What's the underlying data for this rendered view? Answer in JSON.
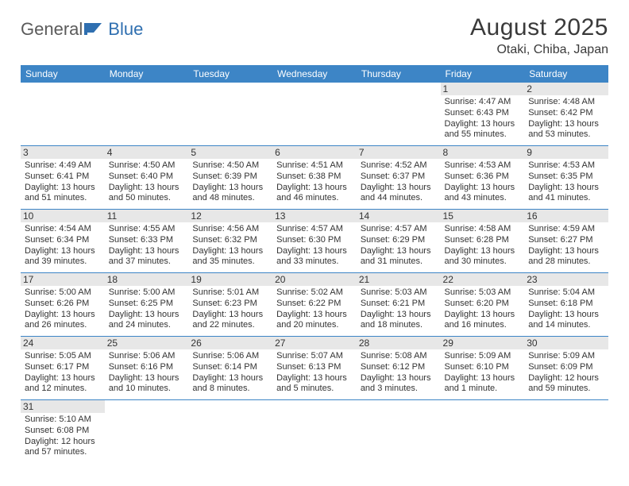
{
  "logo": {
    "part1": "General",
    "part2": "Blue"
  },
  "title": "August 2025",
  "location": "Otaki, Chiba, Japan",
  "colors": {
    "header_bg": "#3d85c6",
    "header_text": "#ffffff",
    "daynum_bg": "#e7e7e7",
    "border": "#3d85c6",
    "text": "#333333",
    "logo_gray": "#5b5b5b",
    "logo_blue": "#2f6fb0"
  },
  "dayNames": [
    "Sunday",
    "Monday",
    "Tuesday",
    "Wednesday",
    "Thursday",
    "Friday",
    "Saturday"
  ],
  "weeks": [
    [
      null,
      null,
      null,
      null,
      null,
      {
        "n": "1",
        "sr": "Sunrise: 4:47 AM",
        "ss": "Sunset: 6:43 PM",
        "d1": "Daylight: 13 hours",
        "d2": "and 55 minutes."
      },
      {
        "n": "2",
        "sr": "Sunrise: 4:48 AM",
        "ss": "Sunset: 6:42 PM",
        "d1": "Daylight: 13 hours",
        "d2": "and 53 minutes."
      }
    ],
    [
      {
        "n": "3",
        "sr": "Sunrise: 4:49 AM",
        "ss": "Sunset: 6:41 PM",
        "d1": "Daylight: 13 hours",
        "d2": "and 51 minutes."
      },
      {
        "n": "4",
        "sr": "Sunrise: 4:50 AM",
        "ss": "Sunset: 6:40 PM",
        "d1": "Daylight: 13 hours",
        "d2": "and 50 minutes."
      },
      {
        "n": "5",
        "sr": "Sunrise: 4:50 AM",
        "ss": "Sunset: 6:39 PM",
        "d1": "Daylight: 13 hours",
        "d2": "and 48 minutes."
      },
      {
        "n": "6",
        "sr": "Sunrise: 4:51 AM",
        "ss": "Sunset: 6:38 PM",
        "d1": "Daylight: 13 hours",
        "d2": "and 46 minutes."
      },
      {
        "n": "7",
        "sr": "Sunrise: 4:52 AM",
        "ss": "Sunset: 6:37 PM",
        "d1": "Daylight: 13 hours",
        "d2": "and 44 minutes."
      },
      {
        "n": "8",
        "sr": "Sunrise: 4:53 AM",
        "ss": "Sunset: 6:36 PM",
        "d1": "Daylight: 13 hours",
        "d2": "and 43 minutes."
      },
      {
        "n": "9",
        "sr": "Sunrise: 4:53 AM",
        "ss": "Sunset: 6:35 PM",
        "d1": "Daylight: 13 hours",
        "d2": "and 41 minutes."
      }
    ],
    [
      {
        "n": "10",
        "sr": "Sunrise: 4:54 AM",
        "ss": "Sunset: 6:34 PM",
        "d1": "Daylight: 13 hours",
        "d2": "and 39 minutes."
      },
      {
        "n": "11",
        "sr": "Sunrise: 4:55 AM",
        "ss": "Sunset: 6:33 PM",
        "d1": "Daylight: 13 hours",
        "d2": "and 37 minutes."
      },
      {
        "n": "12",
        "sr": "Sunrise: 4:56 AM",
        "ss": "Sunset: 6:32 PM",
        "d1": "Daylight: 13 hours",
        "d2": "and 35 minutes."
      },
      {
        "n": "13",
        "sr": "Sunrise: 4:57 AM",
        "ss": "Sunset: 6:30 PM",
        "d1": "Daylight: 13 hours",
        "d2": "and 33 minutes."
      },
      {
        "n": "14",
        "sr": "Sunrise: 4:57 AM",
        "ss": "Sunset: 6:29 PM",
        "d1": "Daylight: 13 hours",
        "d2": "and 31 minutes."
      },
      {
        "n": "15",
        "sr": "Sunrise: 4:58 AM",
        "ss": "Sunset: 6:28 PM",
        "d1": "Daylight: 13 hours",
        "d2": "and 30 minutes."
      },
      {
        "n": "16",
        "sr": "Sunrise: 4:59 AM",
        "ss": "Sunset: 6:27 PM",
        "d1": "Daylight: 13 hours",
        "d2": "and 28 minutes."
      }
    ],
    [
      {
        "n": "17",
        "sr": "Sunrise: 5:00 AM",
        "ss": "Sunset: 6:26 PM",
        "d1": "Daylight: 13 hours",
        "d2": "and 26 minutes."
      },
      {
        "n": "18",
        "sr": "Sunrise: 5:00 AM",
        "ss": "Sunset: 6:25 PM",
        "d1": "Daylight: 13 hours",
        "d2": "and 24 minutes."
      },
      {
        "n": "19",
        "sr": "Sunrise: 5:01 AM",
        "ss": "Sunset: 6:23 PM",
        "d1": "Daylight: 13 hours",
        "d2": "and 22 minutes."
      },
      {
        "n": "20",
        "sr": "Sunrise: 5:02 AM",
        "ss": "Sunset: 6:22 PM",
        "d1": "Daylight: 13 hours",
        "d2": "and 20 minutes."
      },
      {
        "n": "21",
        "sr": "Sunrise: 5:03 AM",
        "ss": "Sunset: 6:21 PM",
        "d1": "Daylight: 13 hours",
        "d2": "and 18 minutes."
      },
      {
        "n": "22",
        "sr": "Sunrise: 5:03 AM",
        "ss": "Sunset: 6:20 PM",
        "d1": "Daylight: 13 hours",
        "d2": "and 16 minutes."
      },
      {
        "n": "23",
        "sr": "Sunrise: 5:04 AM",
        "ss": "Sunset: 6:18 PM",
        "d1": "Daylight: 13 hours",
        "d2": "and 14 minutes."
      }
    ],
    [
      {
        "n": "24",
        "sr": "Sunrise: 5:05 AM",
        "ss": "Sunset: 6:17 PM",
        "d1": "Daylight: 13 hours",
        "d2": "and 12 minutes."
      },
      {
        "n": "25",
        "sr": "Sunrise: 5:06 AM",
        "ss": "Sunset: 6:16 PM",
        "d1": "Daylight: 13 hours",
        "d2": "and 10 minutes."
      },
      {
        "n": "26",
        "sr": "Sunrise: 5:06 AM",
        "ss": "Sunset: 6:14 PM",
        "d1": "Daylight: 13 hours",
        "d2": "and 8 minutes."
      },
      {
        "n": "27",
        "sr": "Sunrise: 5:07 AM",
        "ss": "Sunset: 6:13 PM",
        "d1": "Daylight: 13 hours",
        "d2": "and 5 minutes."
      },
      {
        "n": "28",
        "sr": "Sunrise: 5:08 AM",
        "ss": "Sunset: 6:12 PM",
        "d1": "Daylight: 13 hours",
        "d2": "and 3 minutes."
      },
      {
        "n": "29",
        "sr": "Sunrise: 5:09 AM",
        "ss": "Sunset: 6:10 PM",
        "d1": "Daylight: 13 hours",
        "d2": "and 1 minute."
      },
      {
        "n": "30",
        "sr": "Sunrise: 5:09 AM",
        "ss": "Sunset: 6:09 PM",
        "d1": "Daylight: 12 hours",
        "d2": "and 59 minutes."
      }
    ],
    [
      {
        "n": "31",
        "sr": "Sunrise: 5:10 AM",
        "ss": "Sunset: 6:08 PM",
        "d1": "Daylight: 12 hours",
        "d2": "and 57 minutes."
      },
      null,
      null,
      null,
      null,
      null,
      null
    ]
  ]
}
